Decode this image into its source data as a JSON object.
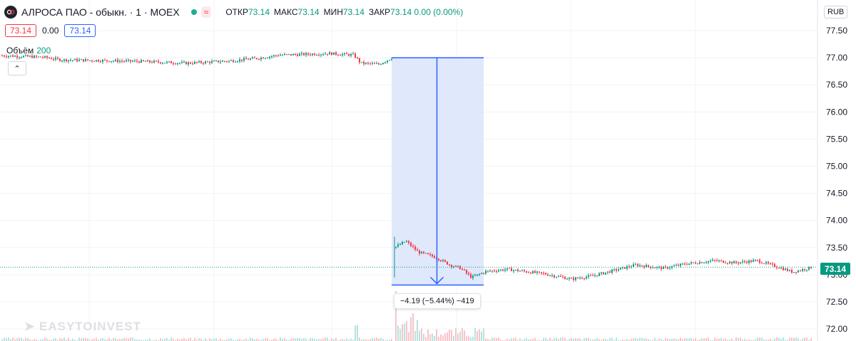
{
  "header": {
    "title": "АЛРОСА ПАО - обыкн. · 1 · MOEX",
    "wave_badge": "≈",
    "ohlc": [
      {
        "label": "ОТКР",
        "value": "73.14"
      },
      {
        "label": "МАКС",
        "value": "73.14"
      },
      {
        "label": "МИН",
        "value": "73.14"
      },
      {
        "label": "ЗАКР",
        "value": "73.14 0.00 (0.00%)"
      }
    ]
  },
  "price_row": {
    "bid": "73.14",
    "spread": "0.00",
    "ask": "73.14"
  },
  "volume": {
    "label": "Объём",
    "value": "200"
  },
  "currency": "RUB",
  "watermark": "EASYTOINVEST",
  "measure": {
    "label": "−4.19 (−5.44%) −419"
  },
  "last_price": "73.14",
  "colors": {
    "up": "#089981",
    "down": "#f23645",
    "measure": "#2962ff",
    "measure_fill": "#dbe4fb"
  },
  "chart_data": {
    "type": "candlestick",
    "symbol": "АЛРОСА ПАО - обыкн.",
    "interval": "1",
    "exchange": "MOEX",
    "y_ticks": [
      "77.50",
      "77.00",
      "76.50",
      "76.00",
      "75.50",
      "75.00",
      "74.50",
      "74.00",
      "73.50",
      "73.00",
      "72.50",
      "72.00"
    ],
    "ylim": [
      72.0,
      77.5
    ],
    "price_path": [
      {
        "t": 0,
        "p": 77.04
      },
      {
        "t": 60,
        "p": 77.01
      },
      {
        "t": 85,
        "p": 76.96
      },
      {
        "t": 140,
        "p": 76.95
      },
      {
        "t": 200,
        "p": 76.93
      },
      {
        "t": 260,
        "p": 76.9
      },
      {
        "t": 320,
        "p": 76.94
      },
      {
        "t": 360,
        "p": 76.99
      },
      {
        "t": 390,
        "p": 77.05
      },
      {
        "t": 420,
        "p": 77.06
      },
      {
        "t": 460,
        "p": 77.08
      },
      {
        "t": 495,
        "p": 77.05
      },
      {
        "t": 505,
        "p": 76.9
      },
      {
        "t": 530,
        "p": 76.88
      },
      {
        "t": 549,
        "p": 77.0
      },
      {
        "t": 552,
        "p": 73.5
      },
      {
        "t": 568,
        "p": 73.62
      },
      {
        "t": 585,
        "p": 73.42
      },
      {
        "t": 610,
        "p": 73.32
      },
      {
        "t": 630,
        "p": 73.18
      },
      {
        "t": 645,
        "p": 73.12
      },
      {
        "t": 660,
        "p": 72.95
      },
      {
        "t": 680,
        "p": 73.06
      },
      {
        "t": 710,
        "p": 73.1
      },
      {
        "t": 760,
        "p": 73.02
      },
      {
        "t": 800,
        "p": 72.92
      },
      {
        "t": 830,
        "p": 72.98
      },
      {
        "t": 860,
        "p": 73.08
      },
      {
        "t": 890,
        "p": 73.18
      },
      {
        "t": 930,
        "p": 73.12
      },
      {
        "t": 960,
        "p": 73.2
      },
      {
        "t": 1000,
        "p": 73.26
      },
      {
        "t": 1030,
        "p": 73.22
      },
      {
        "t": 1060,
        "p": 73.26
      },
      {
        "t": 1090,
        "p": 73.14
      },
      {
        "t": 1110,
        "p": 73.05
      },
      {
        "t": 1138,
        "p": 73.14
      }
    ],
    "measure": {
      "from_price": 77.0,
      "to_price": 72.81,
      "change": -4.19,
      "change_pct": -5.44,
      "ticks": -419
    },
    "last_price": 73.14,
    "volume_value": 200
  }
}
